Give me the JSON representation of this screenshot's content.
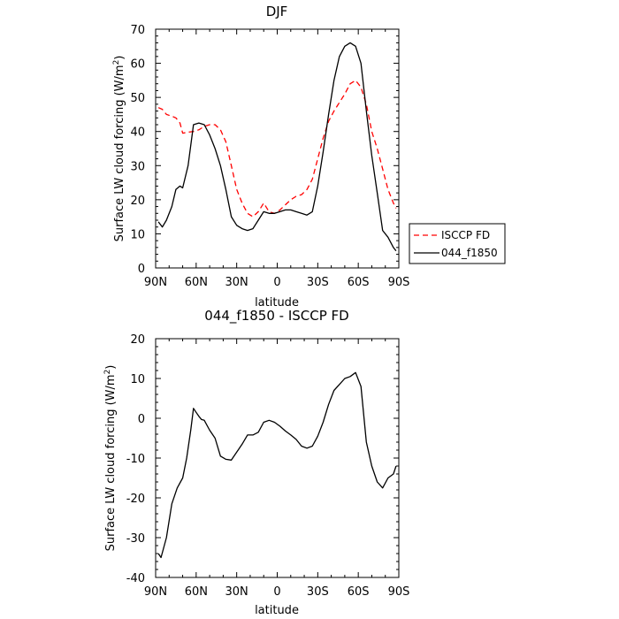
{
  "chart_data": [
    {
      "type": "line",
      "title": "DJF",
      "xlabel": "latitude",
      "ylabel": "Surface LW cloud forcing (W/m",
      "ylabel_sup": "2",
      "ylabel_close": ")",
      "xlim": [
        90,
        -90
      ],
      "ylim": [
        0,
        70
      ],
      "xticks": [
        {
          "v": 90,
          "label": "90N"
        },
        {
          "v": 60,
          "label": "60N"
        },
        {
          "v": 30,
          "label": "30N"
        },
        {
          "v": 0,
          "label": "0"
        },
        {
          "v": -30,
          "label": "30S"
        },
        {
          "v": -60,
          "label": "60S"
        },
        {
          "v": -90,
          "label": "90S"
        }
      ],
      "yticks": [
        0,
        10,
        20,
        30,
        40,
        50,
        60,
        70
      ],
      "legend_position": "right, outside plot",
      "series": [
        {
          "name": "ISCCP FD",
          "color": "#ff0000",
          "dash": "dashed",
          "x": [
            88,
            85,
            82,
            78,
            75,
            72,
            70,
            66,
            62,
            58,
            54,
            50,
            46,
            42,
            38,
            34,
            30,
            26,
            22,
            18,
            14,
            10,
            6,
            2,
            -2,
            -6,
            -10,
            -14,
            -18,
            -22,
            -26,
            -30,
            -34,
            -38,
            -42,
            -46,
            -50,
            -54,
            -58,
            -62,
            -66,
            -70,
            -74,
            -78,
            -82,
            -86,
            -88
          ],
          "y": [
            47,
            46.5,
            45,
            44.5,
            44,
            42.5,
            39.5,
            39.8,
            40,
            40.5,
            41.5,
            42,
            42,
            40.5,
            37,
            30,
            23,
            19,
            16,
            15,
            16.5,
            19,
            16.5,
            16,
            17,
            18.5,
            20,
            21,
            21.5,
            23,
            26,
            32,
            38,
            43,
            46,
            48.5,
            51,
            54,
            55,
            53,
            48,
            40,
            35,
            29,
            23,
            19,
            17.5
          ]
        },
        {
          "name": "044_f1850",
          "color": "#000000",
          "dash": "solid",
          "x": [
            88,
            85,
            82,
            78,
            75,
            72,
            70,
            66,
            62,
            58,
            54,
            50,
            46,
            42,
            38,
            34,
            30,
            26,
            22,
            18,
            14,
            10,
            6,
            2,
            -2,
            -6,
            -10,
            -14,
            -18,
            -22,
            -26,
            -30,
            -34,
            -38,
            -42,
            -46,
            -50,
            -54,
            -58,
            -62,
            -66,
            -70,
            -74,
            -78,
            -82,
            -86,
            -88
          ],
          "y": [
            13.5,
            12,
            14,
            18,
            23,
            24,
            23.5,
            30,
            42,
            42.5,
            42,
            39,
            35,
            30,
            23,
            15,
            12.5,
            11.5,
            11,
            11.5,
            14,
            16.5,
            16,
            16,
            16.5,
            17,
            17,
            16.5,
            16,
            15.5,
            16.5,
            24,
            34,
            45,
            55,
            62,
            65,
            66,
            65,
            60,
            46,
            33,
            22,
            11,
            9,
            6,
            5
          ]
        }
      ]
    },
    {
      "type": "line",
      "title": "044_f1850 - ISCCP FD",
      "xlabel": "latitude",
      "ylabel": "Surface LW cloud forcing (W/m",
      "ylabel_sup": "2",
      "ylabel_close": ")",
      "xlim": [
        90,
        -90
      ],
      "ylim": [
        -40,
        20
      ],
      "xticks": [
        {
          "v": 90,
          "label": "90N"
        },
        {
          "v": 60,
          "label": "60N"
        },
        {
          "v": 30,
          "label": "30N"
        },
        {
          "v": 0,
          "label": "0"
        },
        {
          "v": -30,
          "label": "30S"
        },
        {
          "v": -60,
          "label": "60S"
        },
        {
          "v": -90,
          "label": "90S"
        }
      ],
      "yticks": [
        -40,
        -30,
        -20,
        -10,
        0,
        10,
        20
      ],
      "series": [
        {
          "name": "",
          "color": "#000000",
          "dash": "solid",
          "x": [
            88,
            86,
            82,
            78,
            74,
            70,
            67,
            64,
            62,
            60,
            58,
            56,
            54,
            50,
            46,
            42,
            38,
            34,
            30,
            26,
            22,
            18,
            14,
            10,
            6,
            2,
            -2,
            -6,
            -10,
            -14,
            -18,
            -22,
            -26,
            -30,
            -34,
            -38,
            -42,
            -46,
            -50,
            -54,
            -58,
            -62,
            -66,
            -70,
            -74,
            -78,
            -82,
            -86,
            -88
          ],
          "y": [
            -34,
            -35,
            -30,
            -21.5,
            -17.5,
            -15,
            -10,
            -3,
            2.5,
            1.5,
            0.5,
            -0.3,
            -0.5,
            -3,
            -5,
            -9.5,
            -10.3,
            -10.5,
            -8.5,
            -6.5,
            -4.2,
            -4.2,
            -3.5,
            -1,
            -0.5,
            -1,
            -2,
            -3.2,
            -4.2,
            -5.3,
            -7,
            -7.5,
            -7,
            -4.5,
            -1,
            3.5,
            7,
            8.5,
            10,
            10.5,
            11.5,
            8,
            -6,
            -12,
            -16,
            -17.5,
            -15,
            -14,
            -12
          ]
        }
      ]
    }
  ]
}
